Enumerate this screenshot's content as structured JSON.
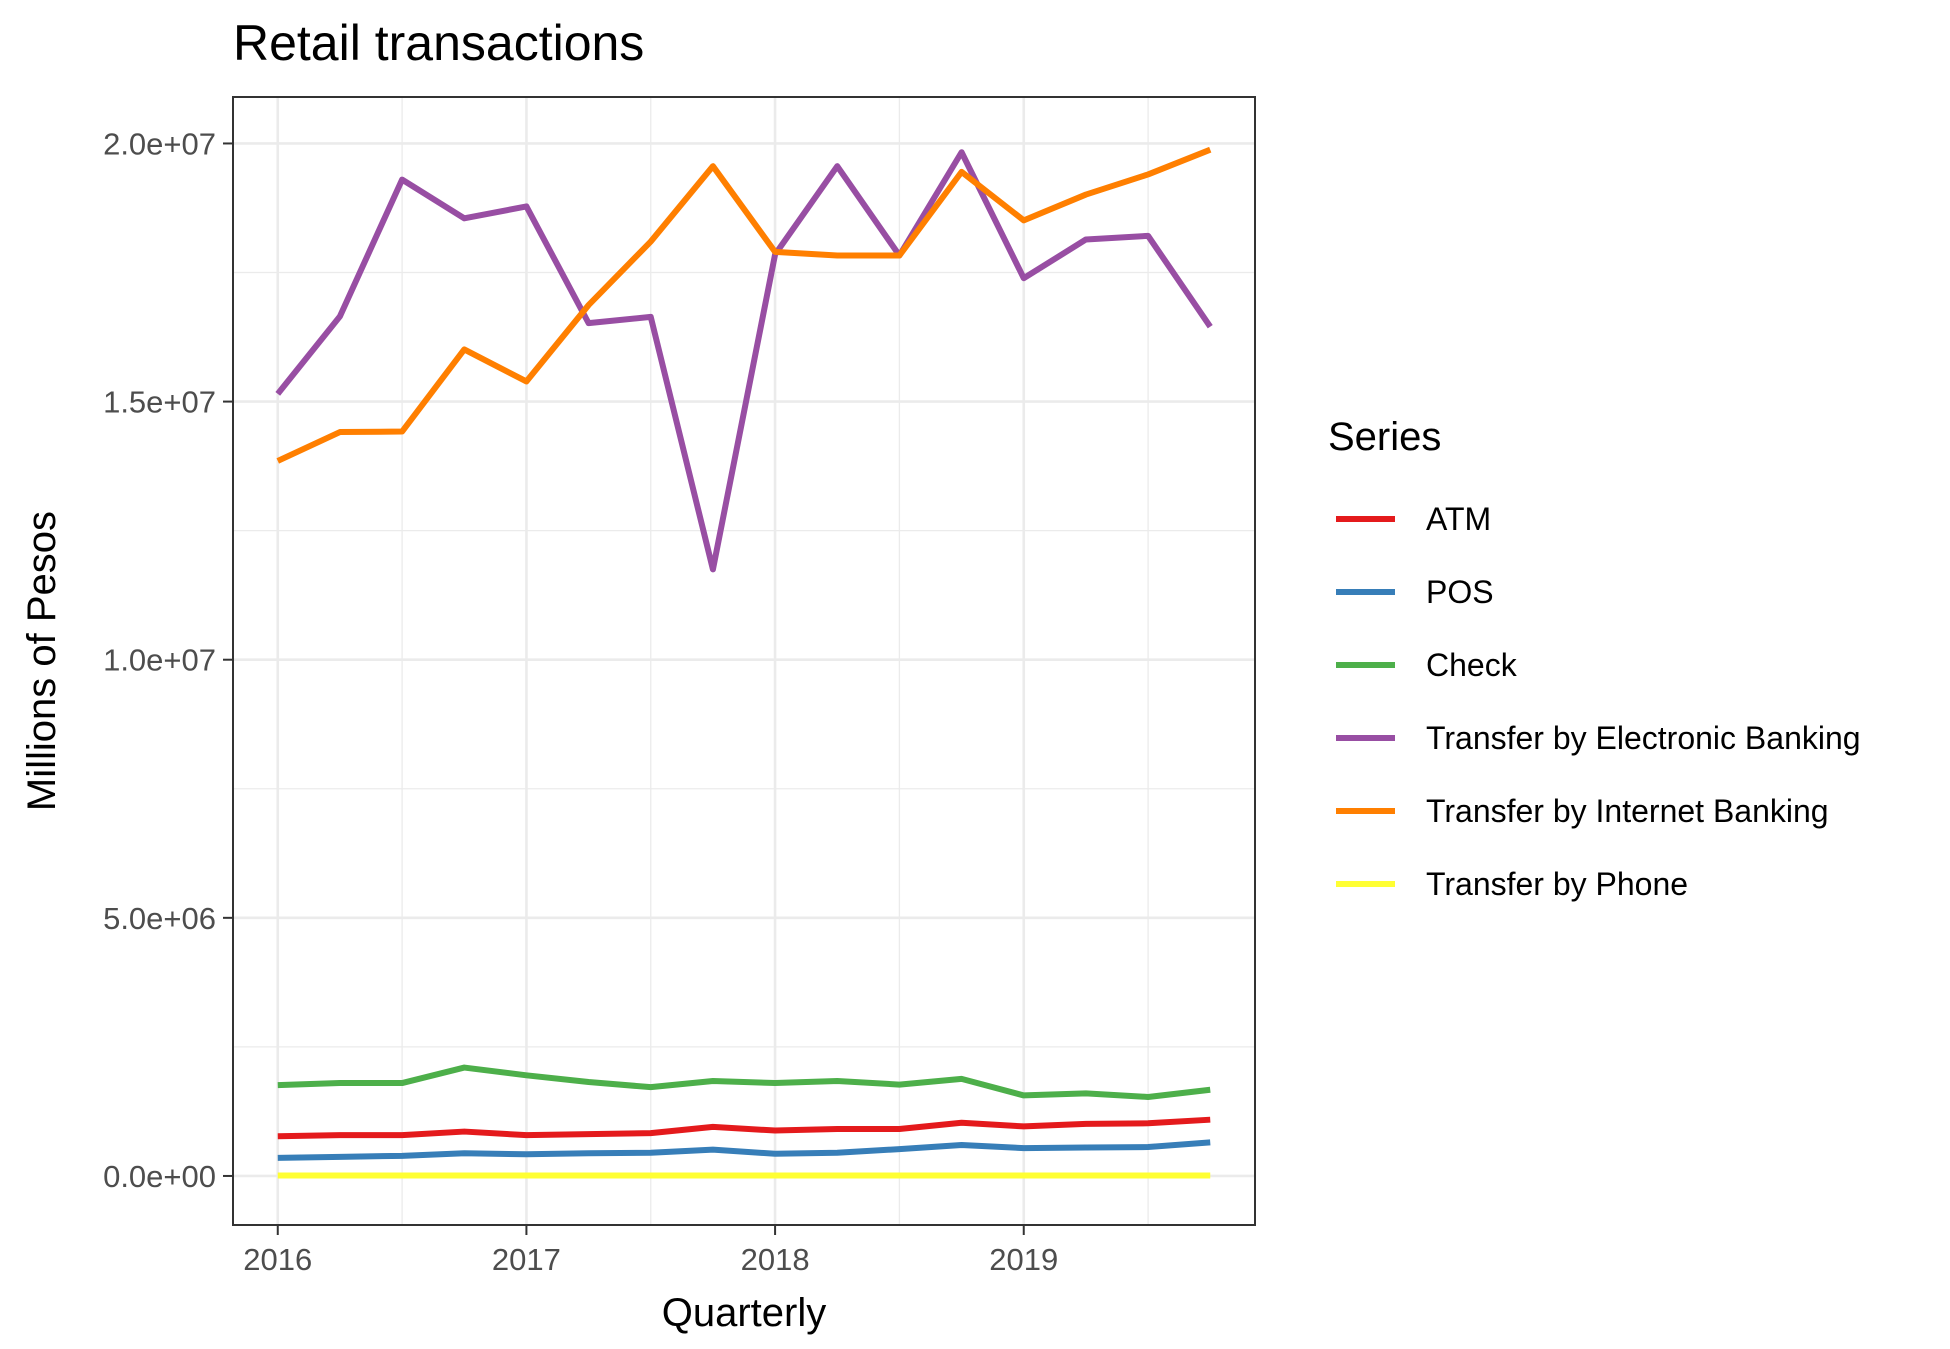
{
  "chart_data": {
    "type": "line",
    "title": "Retail transactions",
    "xlabel": "Quarterly",
    "ylabel": "Millions of Pesos",
    "x": [
      2016.0,
      2016.25,
      2016.5,
      2016.75,
      2017.0,
      2017.25,
      2017.5,
      2017.75,
      2018.0,
      2018.25,
      2018.5,
      2018.75,
      2019.0,
      2019.25,
      2019.5,
      2019.75
    ],
    "xlim": [
      2015.82,
      2019.93
    ],
    "ylim": [
      -950000,
      20900000
    ],
    "x_ticks": [
      2016,
      2017,
      2018,
      2019
    ],
    "x_tick_labels": [
      "2016",
      "2017",
      "2018",
      "2019"
    ],
    "x_minor_ticks": [
      2016.5,
      2017.5,
      2018.5,
      2019.5
    ],
    "y_ticks": [
      0,
      5000000,
      10000000,
      15000000,
      20000000
    ],
    "y_tick_labels": [
      "0.0e+00",
      "5.0e+06",
      "1.0e+07",
      "1.5e+07",
      "2.0e+07"
    ],
    "y_minor_ticks": [
      2500000,
      7500000,
      12500000,
      17500000
    ],
    "grid": true,
    "legend": {
      "title": "Series",
      "position": "right"
    },
    "series": [
      {
        "name": "ATM",
        "color": "#e41a1c",
        "values": [
          770000,
          790000,
          790000,
          860000,
          790000,
          810000,
          830000,
          950000,
          880000,
          910000,
          910000,
          1030000,
          960000,
          1010000,
          1020000,
          1090000
        ]
      },
      {
        "name": "POS",
        "color": "#377eb8",
        "values": [
          350000,
          370000,
          390000,
          440000,
          420000,
          440000,
          450000,
          510000,
          430000,
          450000,
          520000,
          600000,
          540000,
          550000,
          560000,
          650000
        ]
      },
      {
        "name": "Check",
        "color": "#4daf4a",
        "values": [
          1760000,
          1800000,
          1800000,
          2100000,
          1950000,
          1820000,
          1720000,
          1840000,
          1800000,
          1840000,
          1770000,
          1880000,
          1560000,
          1600000,
          1530000,
          1670000
        ]
      },
      {
        "name": "Transfer by Electronic Banking",
        "color": "#984ea3",
        "values": [
          15150000,
          16650000,
          19300000,
          18550000,
          18780000,
          16520000,
          16640000,
          11750000,
          17850000,
          19560000,
          17830000,
          19830000,
          17390000,
          18140000,
          18210000,
          16450000
        ]
      },
      {
        "name": "Transfer by Internet Banking",
        "color": "#ff7f00",
        "values": [
          13850000,
          14410000,
          14420000,
          16010000,
          15390000,
          16870000,
          18100000,
          19560000,
          17900000,
          17830000,
          17830000,
          19450000,
          18510000,
          19010000,
          19400000,
          19880000
        ]
      },
      {
        "name": "Transfer by Phone",
        "color": "#ffff33",
        "values": [
          10000,
          10000,
          10000,
          10000,
          10000,
          10000,
          10000,
          10000,
          10000,
          10000,
          10000,
          10000,
          10000,
          10000,
          10000,
          10000
        ]
      }
    ]
  }
}
